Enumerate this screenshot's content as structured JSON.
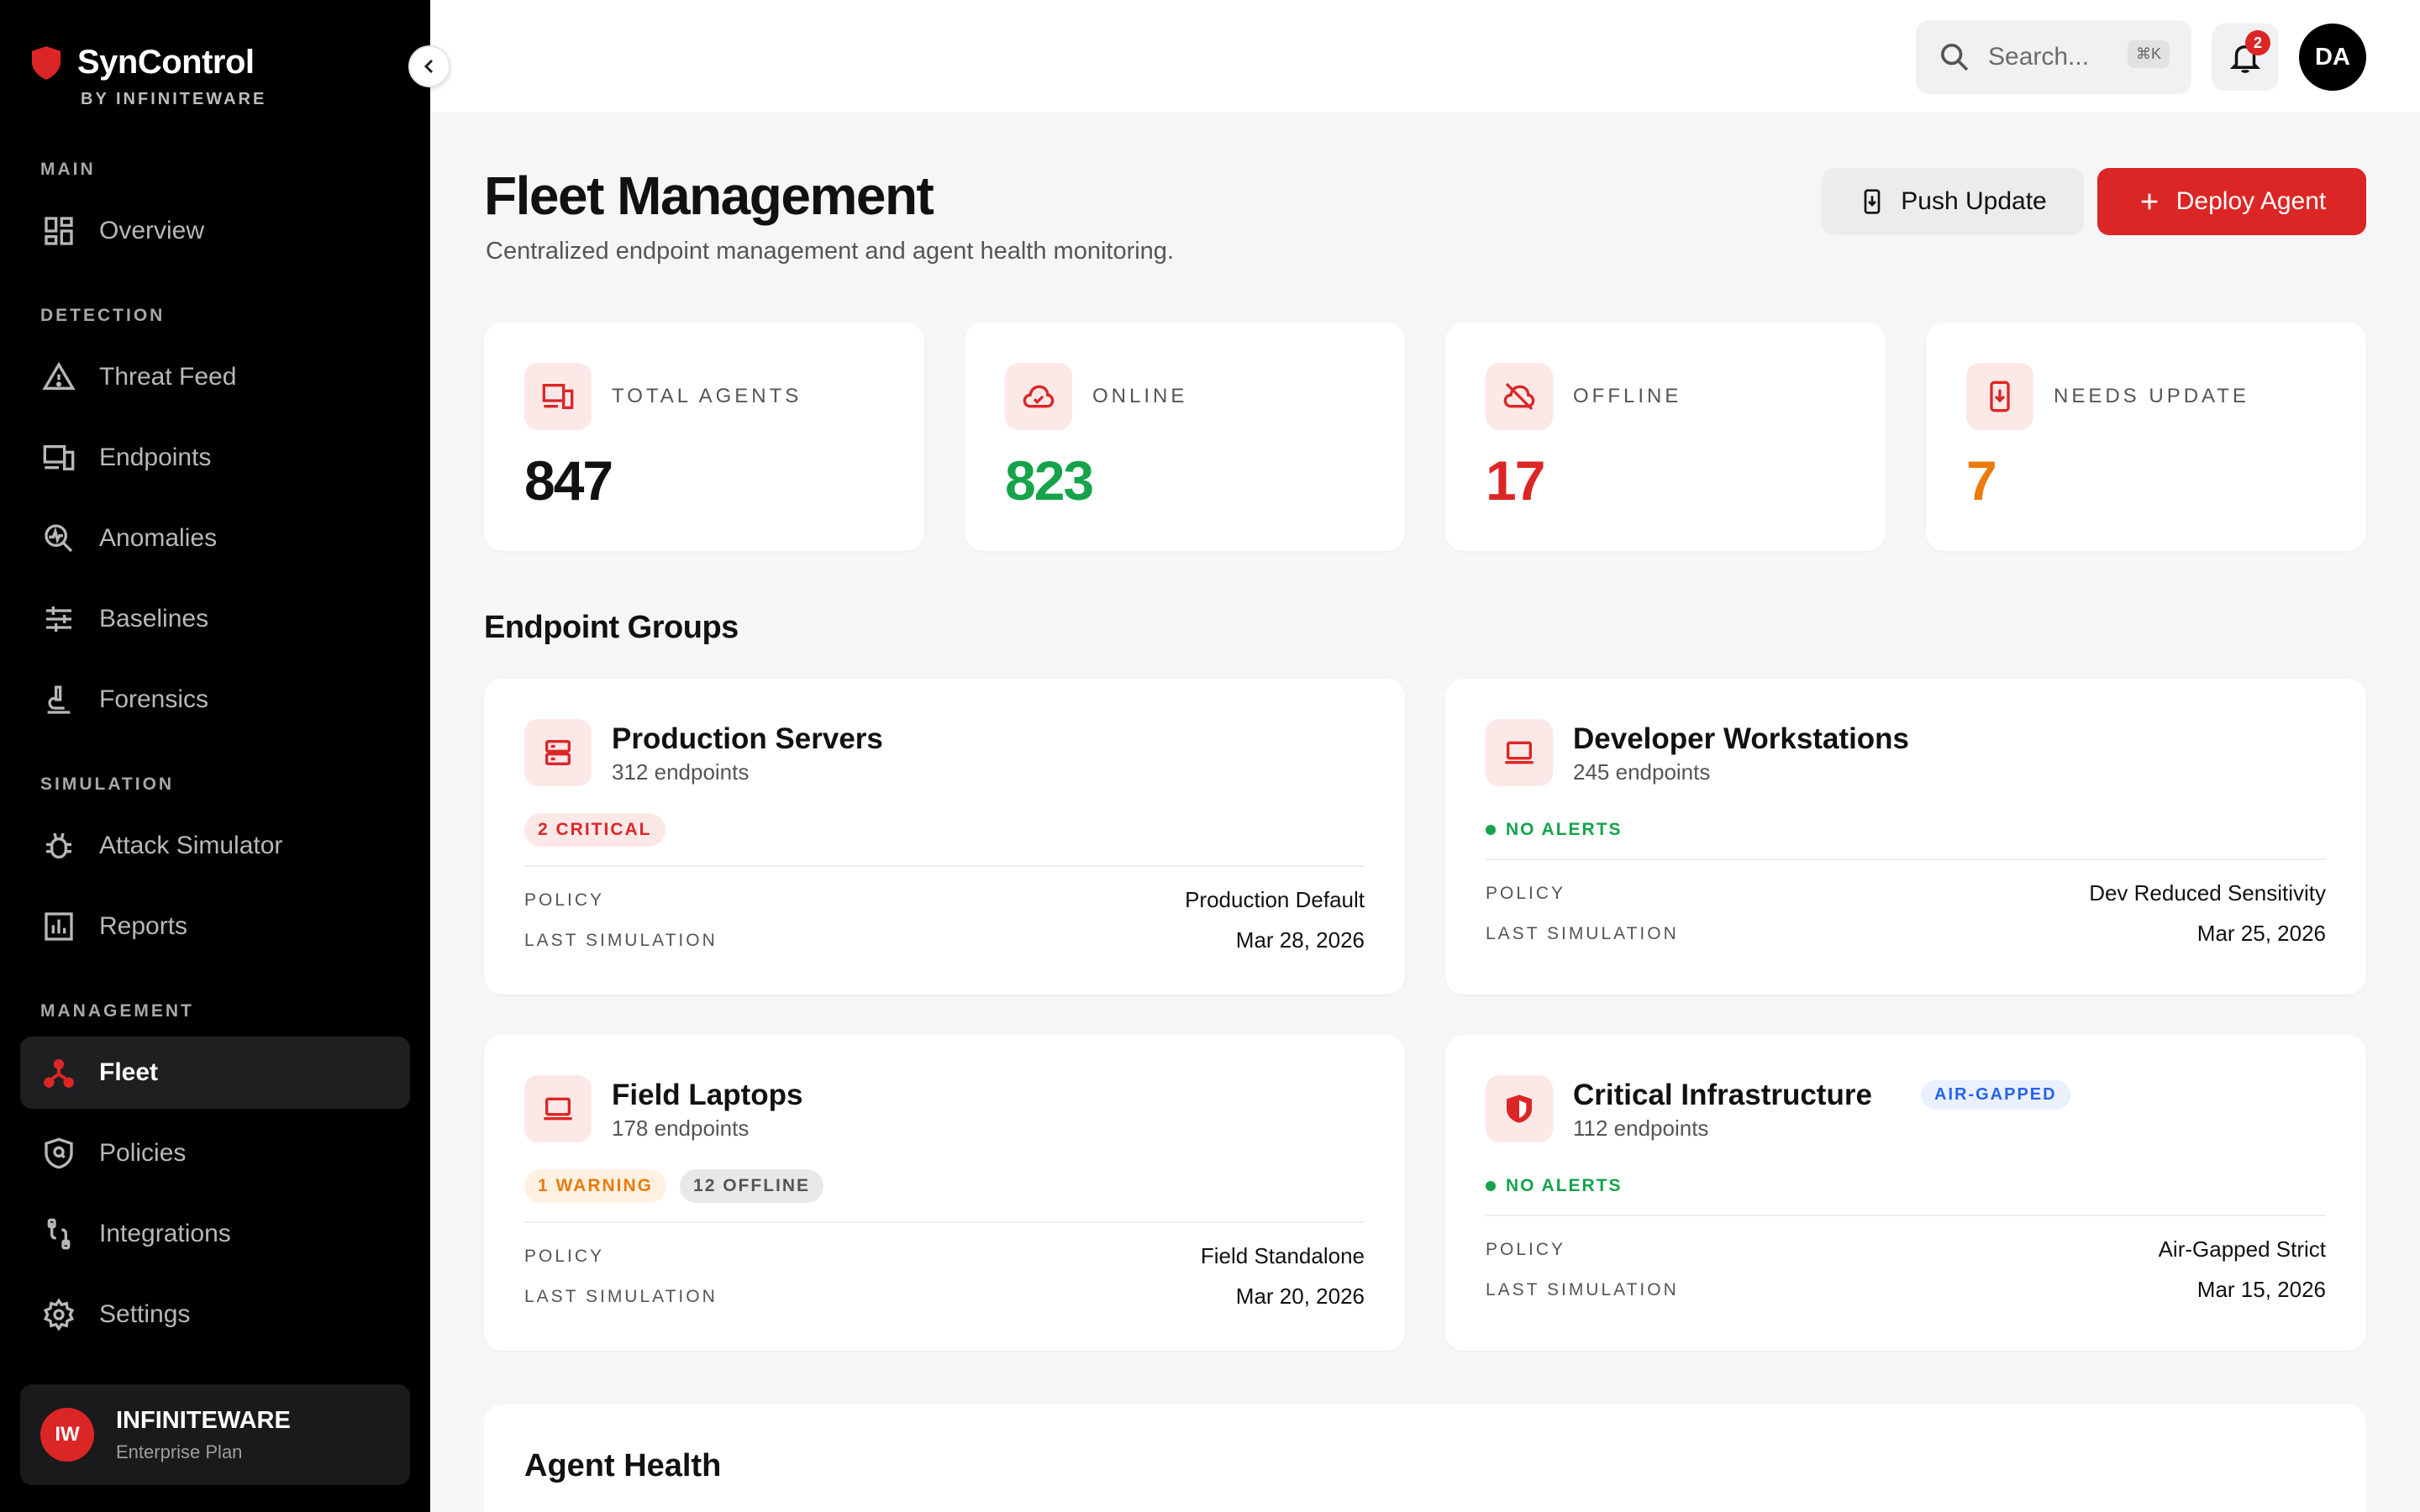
{
  "brand": {
    "name": "SynControl",
    "sub": "BY INFINITEWARE"
  },
  "sidebar": {
    "sections": [
      "MAIN",
      "DETECTION",
      "SIMULATION",
      "MANAGEMENT"
    ],
    "items": [
      {
        "label": "Overview",
        "icon": "dashboard-icon"
      },
      {
        "label": "Threat Feed",
        "icon": "warning-icon"
      },
      {
        "label": "Endpoints",
        "icon": "devices-icon"
      },
      {
        "label": "Anomalies",
        "icon": "anomaly-icon"
      },
      {
        "label": "Baselines",
        "icon": "sliders-icon"
      },
      {
        "label": "Forensics",
        "icon": "microscope-icon"
      },
      {
        "label": "Attack Simulator",
        "icon": "bug-icon"
      },
      {
        "label": "Reports",
        "icon": "bar-chart-icon"
      },
      {
        "label": "Fleet",
        "icon": "fleet-icon",
        "active": true
      },
      {
        "label": "Policies",
        "icon": "policy-shield-icon"
      },
      {
        "label": "Integrations",
        "icon": "plug-icon"
      },
      {
        "label": "Settings",
        "icon": "gear-icon"
      }
    ],
    "org": {
      "initials": "IW",
      "name": "INFINITEWARE",
      "plan": "Enterprise Plan"
    }
  },
  "topbar": {
    "search_placeholder": "Search...",
    "search_shortcut": "⌘K",
    "notification_count": "2",
    "user_initials": "DA"
  },
  "page": {
    "title": "Fleet Management",
    "subtitle": "Centralized endpoint management and agent health monitoring.",
    "push_label": "Push Update",
    "deploy_label": "Deploy Agent"
  },
  "stats": [
    {
      "label": "TOTAL AGENTS",
      "value": "847",
      "color": "#111111"
    },
    {
      "label": "ONLINE",
      "value": "823",
      "color": "#16a34a"
    },
    {
      "label": "OFFLINE",
      "value": "17",
      "color": "#dc2626"
    },
    {
      "label": "NEEDS UPDATE",
      "value": "7",
      "color": "#ea7b0c"
    }
  ],
  "groups_title": "Endpoint Groups",
  "groups": [
    {
      "name": "Production Servers",
      "count": "312 endpoints",
      "tags": [
        "2 CRITICAL"
      ],
      "policy_label": "POLICY",
      "policy": "Production Default",
      "sim_label": "LAST SIMULATION",
      "last_sim": "Mar 28, 2026"
    },
    {
      "name": "Developer Workstations",
      "count": "245 endpoints",
      "status": "NO ALERTS",
      "policy_label": "POLICY",
      "policy": "Dev Reduced Sensitivity",
      "sim_label": "LAST SIMULATION",
      "last_sim": "Mar 25, 2026"
    },
    {
      "name": "Field Laptops",
      "count": "178 endpoints",
      "tags": [
        "1 WARNING",
        "12 OFFLINE"
      ],
      "policy_label": "POLICY",
      "policy": "Field Standalone",
      "sim_label": "LAST SIMULATION",
      "last_sim": "Mar 20, 2026"
    },
    {
      "name": "Critical Infrastructure",
      "badge": "AIR-GAPPED",
      "count": "112 endpoints",
      "status": "NO ALERTS",
      "policy_label": "POLICY",
      "policy": "Air-Gapped Strict",
      "sim_label": "LAST SIMULATION",
      "last_sim": "Mar 15, 2026"
    }
  ],
  "health_title": "Agent Health"
}
